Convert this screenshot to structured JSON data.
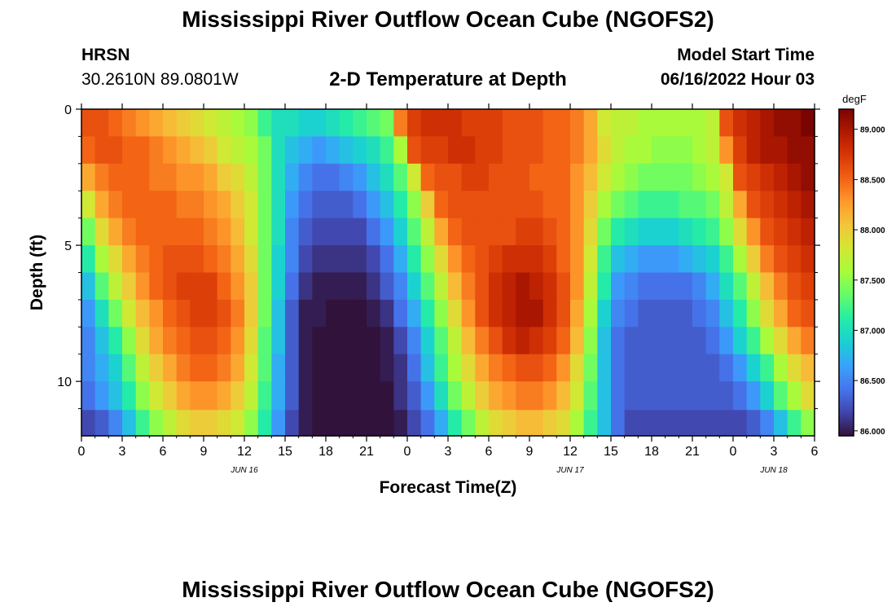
{
  "header": {
    "title": "Mississippi River Outflow Ocean Cube (NGOFS2)",
    "station_name": "HRSN",
    "station_coords": "30.2610N  89.0801W",
    "plot_title": "2-D Temperature at Depth",
    "model_start_label": "Model Start Time",
    "model_start_value": "06/16/2022 Hour 03"
  },
  "footer": {
    "title": "Mississippi River Outflow Ocean Cube (NGOFS2)"
  },
  "chart_data": {
    "type": "heatmap",
    "xlabel": "Forecast Time(Z)",
    "ylabel": "Depth (ft)",
    "x_tick_labels": [
      "0",
      "3",
      "6",
      "9",
      "12",
      "15",
      "18",
      "21",
      "0",
      "3",
      "6",
      "9",
      "12",
      "15",
      "18",
      "21",
      "0",
      "3",
      "6"
    ],
    "x_ticks_hours": [
      0,
      3,
      6,
      9,
      12,
      15,
      18,
      21,
      24,
      27,
      30,
      33,
      36,
      39,
      42,
      45,
      48,
      51,
      54
    ],
    "date_labels": [
      {
        "hour": 12,
        "label": "JUN 16"
      },
      {
        "hour": 36,
        "label": "JUN 17"
      },
      {
        "hour": 51,
        "label": "JUN 18"
      }
    ],
    "xlim_hours": [
      0,
      54
    ],
    "y_tick_labels": [
      "0",
      "5",
      "10"
    ],
    "y_ticks": [
      0,
      5,
      10
    ],
    "ylim": [
      0,
      12
    ],
    "y_inverted": true,
    "colorbar": {
      "unit": "degF",
      "min": 85.95,
      "max": 89.2,
      "tick_labels": [
        "86.000",
        "86.500",
        "87.000",
        "87.500",
        "88.000",
        "88.500",
        "89.000"
      ],
      "ticks": [
        86.0,
        86.5,
        87.0,
        87.5,
        88.0,
        88.5,
        89.0
      ],
      "colormap": [
        "#30123b",
        "#4145ab",
        "#4675ed",
        "#39a2fc",
        "#1bcfd4",
        "#24eca6",
        "#61fc6c",
        "#a4fc3b",
        "#d1e834",
        "#f3c63a",
        "#fe9b2d",
        "#f36315",
        "#d93806",
        "#b11901",
        "#7a0402"
      ]
    },
    "depths_ft": [
      0.5,
      1.5,
      2.5,
      3.5,
      4.5,
      5.5,
      6.5,
      7.5,
      8.5,
      9.5,
      10.5,
      11.6
    ],
    "hours": [
      0,
      1,
      2,
      3,
      4,
      5,
      6,
      7,
      8,
      9,
      10,
      11,
      12,
      13,
      14,
      15,
      16,
      17,
      18,
      19,
      20,
      21,
      22,
      23,
      24,
      25,
      26,
      27,
      28,
      29,
      30,
      31,
      32,
      33,
      34,
      35,
      36,
      37,
      38,
      39,
      40,
      41,
      42,
      43,
      44,
      45,
      46,
      47,
      48,
      49,
      50,
      51,
      52,
      53
    ],
    "temperature_degF": [
      [
        88.6,
        88.6,
        88.5,
        88.4,
        88.3,
        88.2,
        88.1,
        88.0,
        87.9,
        87.8,
        87.7,
        87.6,
        87.5,
        87.2,
        87.0,
        87.0,
        86.9,
        86.9,
        87.0,
        87.1,
        87.2,
        87.3,
        87.4,
        88.4,
        88.7,
        88.8,
        88.8,
        88.8,
        88.7,
        88.7,
        88.7,
        88.6,
        88.6,
        88.6,
        88.5,
        88.5,
        88.4,
        88.2,
        87.8,
        87.7,
        87.7,
        87.6,
        87.6,
        87.6,
        87.6,
        87.6,
        87.7,
        88.6,
        88.8,
        88.9,
        89.0,
        89.1,
        89.1,
        89.2
      ],
      [
        88.5,
        88.6,
        88.6,
        88.5,
        88.5,
        88.4,
        88.3,
        88.2,
        88.1,
        88.0,
        87.8,
        87.7,
        87.6,
        87.4,
        87.0,
        86.8,
        86.7,
        86.6,
        86.7,
        86.8,
        86.9,
        87.0,
        87.2,
        87.6,
        88.6,
        88.7,
        88.7,
        88.8,
        88.8,
        88.7,
        88.7,
        88.6,
        88.6,
        88.6,
        88.5,
        88.5,
        88.4,
        88.2,
        87.9,
        87.7,
        87.6,
        87.6,
        87.5,
        87.5,
        87.5,
        87.6,
        87.7,
        88.3,
        88.7,
        88.9,
        89.0,
        89.0,
        89.1,
        89.1
      ],
      [
        88.2,
        88.4,
        88.5,
        88.5,
        88.5,
        88.4,
        88.4,
        88.3,
        88.3,
        88.2,
        88.0,
        87.9,
        87.7,
        87.4,
        87.0,
        86.7,
        86.5,
        86.4,
        86.4,
        86.5,
        86.6,
        86.8,
        87.0,
        87.3,
        87.8,
        88.5,
        88.6,
        88.6,
        88.7,
        88.7,
        88.6,
        88.6,
        88.6,
        88.5,
        88.5,
        88.5,
        88.3,
        88.1,
        87.8,
        87.6,
        87.5,
        87.4,
        87.4,
        87.4,
        87.4,
        87.5,
        87.6,
        87.8,
        88.6,
        88.7,
        88.8,
        88.9,
        89.0,
        89.1
      ],
      [
        87.8,
        88.2,
        88.4,
        88.5,
        88.5,
        88.5,
        88.5,
        88.4,
        88.4,
        88.3,
        88.2,
        88.0,
        87.8,
        87.4,
        87.0,
        86.6,
        86.4,
        86.3,
        86.3,
        86.3,
        86.4,
        86.6,
        86.8,
        87.1,
        87.5,
        88.0,
        88.5,
        88.6,
        88.6,
        88.6,
        88.6,
        88.6,
        88.6,
        88.6,
        88.5,
        88.5,
        88.3,
        88.0,
        87.6,
        87.4,
        87.3,
        87.2,
        87.2,
        87.2,
        87.3,
        87.3,
        87.4,
        87.7,
        88.2,
        88.6,
        88.7,
        88.8,
        88.9,
        89.0
      ],
      [
        87.4,
        87.9,
        88.2,
        88.4,
        88.5,
        88.5,
        88.5,
        88.5,
        88.5,
        88.4,
        88.3,
        88.1,
        87.8,
        87.4,
        87.0,
        86.5,
        86.3,
        86.2,
        86.2,
        86.2,
        86.2,
        86.4,
        86.6,
        86.9,
        87.3,
        87.7,
        88.2,
        88.5,
        88.6,
        88.6,
        88.6,
        88.6,
        88.7,
        88.7,
        88.6,
        88.5,
        88.3,
        87.9,
        87.4,
        87.1,
        87.0,
        86.9,
        86.9,
        86.9,
        87.0,
        87.1,
        87.2,
        87.5,
        87.9,
        88.3,
        88.6,
        88.7,
        88.8,
        88.9
      ],
      [
        87.1,
        87.6,
        87.9,
        88.2,
        88.4,
        88.5,
        88.6,
        88.6,
        88.6,
        88.5,
        88.4,
        88.2,
        87.9,
        87.4,
        86.9,
        86.5,
        86.2,
        86.1,
        86.1,
        86.1,
        86.1,
        86.2,
        86.4,
        86.7,
        87.1,
        87.5,
        87.9,
        88.3,
        88.5,
        88.6,
        88.7,
        88.8,
        88.8,
        88.8,
        88.7,
        88.5,
        88.3,
        87.8,
        87.2,
        86.8,
        86.7,
        86.6,
        86.6,
        86.6,
        86.7,
        86.8,
        86.9,
        87.2,
        87.6,
        88.0,
        88.4,
        88.6,
        88.7,
        88.8
      ],
      [
        86.8,
        87.3,
        87.7,
        88.0,
        88.3,
        88.5,
        88.6,
        88.7,
        88.7,
        88.7,
        88.5,
        88.3,
        88.0,
        87.4,
        86.9,
        86.4,
        86.1,
        86.0,
        86.0,
        86.0,
        86.0,
        86.1,
        86.3,
        86.5,
        86.9,
        87.3,
        87.7,
        88.1,
        88.4,
        88.6,
        88.8,
        88.9,
        89.0,
        88.9,
        88.8,
        88.6,
        88.3,
        87.7,
        87.1,
        86.6,
        86.5,
        86.4,
        86.4,
        86.4,
        86.4,
        86.5,
        86.7,
        87.0,
        87.3,
        87.7,
        88.1,
        88.4,
        88.6,
        88.7
      ],
      [
        86.6,
        87.0,
        87.4,
        87.8,
        88.1,
        88.3,
        88.5,
        88.6,
        88.7,
        88.7,
        88.6,
        88.4,
        88.0,
        87.4,
        86.8,
        86.3,
        86.0,
        86.0,
        85.95,
        85.95,
        85.95,
        86.0,
        86.1,
        86.4,
        86.7,
        87.1,
        87.5,
        87.9,
        88.3,
        88.6,
        88.8,
        88.9,
        89.0,
        89.0,
        88.8,
        88.6,
        88.2,
        87.6,
        86.9,
        86.5,
        86.4,
        86.3,
        86.3,
        86.3,
        86.3,
        86.4,
        86.5,
        86.8,
        87.1,
        87.5,
        87.9,
        88.2,
        88.5,
        88.6
      ],
      [
        86.5,
        86.8,
        87.1,
        87.5,
        87.9,
        88.2,
        88.4,
        88.5,
        88.6,
        88.6,
        88.5,
        88.3,
        87.9,
        87.3,
        86.8,
        86.3,
        86.0,
        85.95,
        85.95,
        85.95,
        85.95,
        85.95,
        86.0,
        86.2,
        86.5,
        86.9,
        87.3,
        87.7,
        88.1,
        88.4,
        88.6,
        88.8,
        88.9,
        88.8,
        88.7,
        88.5,
        88.1,
        87.5,
        86.8,
        86.4,
        86.3,
        86.3,
        86.3,
        86.3,
        86.3,
        86.3,
        86.4,
        86.6,
        86.9,
        87.2,
        87.6,
        87.9,
        88.2,
        88.4
      ],
      [
        86.5,
        86.7,
        86.9,
        87.3,
        87.7,
        88.0,
        88.2,
        88.4,
        88.5,
        88.5,
        88.4,
        88.2,
        87.8,
        87.3,
        86.7,
        86.3,
        86.0,
        85.95,
        85.95,
        85.95,
        85.95,
        85.95,
        86.0,
        86.1,
        86.4,
        86.8,
        87.2,
        87.6,
        87.9,
        88.2,
        88.4,
        88.5,
        88.6,
        88.6,
        88.5,
        88.3,
        87.9,
        87.4,
        86.8,
        86.4,
        86.3,
        86.3,
        86.3,
        86.3,
        86.3,
        86.3,
        86.3,
        86.4,
        86.6,
        86.9,
        87.2,
        87.6,
        87.9,
        88.1
      ],
      [
        86.4,
        86.6,
        86.8,
        87.1,
        87.5,
        87.8,
        88.0,
        88.2,
        88.3,
        88.3,
        88.2,
        88.0,
        87.7,
        87.2,
        86.7,
        86.3,
        86.0,
        85.95,
        85.95,
        85.95,
        85.95,
        85.95,
        85.95,
        86.1,
        86.3,
        86.6,
        87.0,
        87.4,
        87.7,
        88.0,
        88.2,
        88.3,
        88.4,
        88.4,
        88.3,
        88.1,
        87.8,
        87.3,
        86.8,
        86.4,
        86.3,
        86.3,
        86.3,
        86.3,
        86.3,
        86.3,
        86.3,
        86.3,
        86.4,
        86.6,
        86.9,
        87.3,
        87.6,
        87.9
      ],
      [
        86.2,
        86.3,
        86.5,
        86.8,
        87.2,
        87.5,
        87.7,
        87.9,
        88.0,
        88.0,
        87.9,
        87.8,
        87.5,
        87.1,
        86.6,
        86.2,
        86.0,
        85.95,
        85.95,
        85.95,
        85.95,
        85.95,
        85.95,
        86.0,
        86.2,
        86.4,
        86.7,
        87.1,
        87.4,
        87.7,
        87.9,
        88.0,
        88.1,
        88.1,
        88.0,
        87.9,
        87.6,
        87.2,
        86.8,
        86.4,
        86.2,
        86.2,
        86.2,
        86.2,
        86.2,
        86.2,
        86.2,
        86.2,
        86.2,
        86.3,
        86.5,
        86.8,
        87.2,
        87.5
      ]
    ]
  }
}
